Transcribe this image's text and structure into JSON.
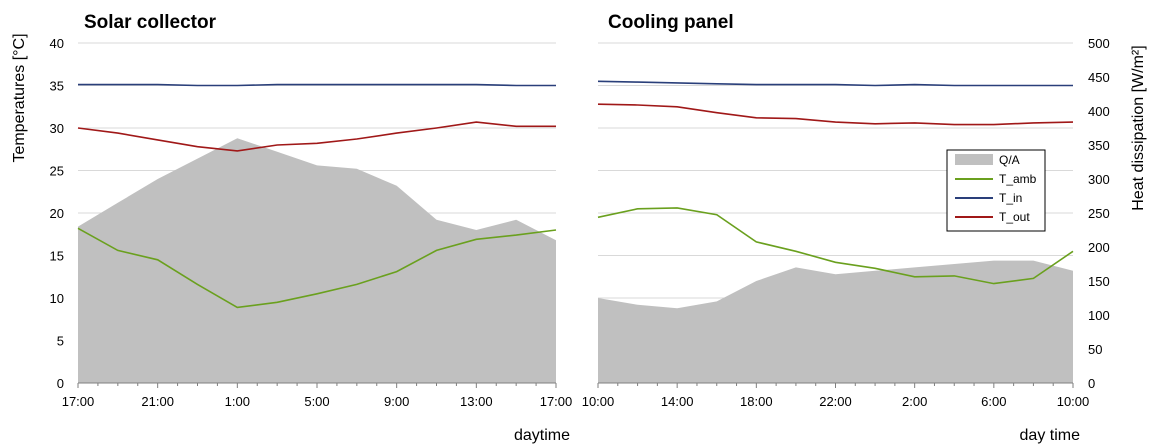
{
  "chart_data": [
    {
      "type": "line",
      "title": "Solar collector",
      "xlabel": "daytime",
      "ylabel": "Temperatures [°C]",
      "ylim": [
        0,
        40
      ],
      "y2lim": [
        0,
        500
      ],
      "yticks": [
        0,
        5,
        10,
        15,
        20,
        25,
        30,
        35,
        40
      ],
      "xticks": [
        "17:00",
        "21:00",
        "1:00",
        "5:00",
        "9:00",
        "13:00",
        "17:00"
      ],
      "grid": true,
      "x": [
        "17:00",
        "19:00",
        "21:00",
        "23:00",
        "1:00",
        "3:00",
        "5:00",
        "7:00",
        "9:00",
        "11:00",
        "13:00",
        "15:00",
        "17:00"
      ],
      "series": [
        {
          "name": "T_amb",
          "axis": "left",
          "kind": "line",
          "color": "#6aa01e",
          "values": [
            18.2,
            15.6,
            14.5,
            11.6,
            8.9,
            9.5,
            10.5,
            11.6,
            13.1,
            15.6,
            16.9,
            17.4,
            18.0
          ]
        },
        {
          "name": "T_in",
          "axis": "left",
          "kind": "line",
          "color": "#2a3f7a",
          "values": [
            35.1,
            35.1,
            35.1,
            35.0,
            35.0,
            35.1,
            35.1,
            35.1,
            35.1,
            35.1,
            35.1,
            35.0,
            35.0
          ]
        },
        {
          "name": "T_out",
          "axis": "left",
          "kind": "line",
          "color": "#a01818",
          "values": [
            30.0,
            29.4,
            28.6,
            27.8,
            27.3,
            28.0,
            28.2,
            28.7,
            29.4,
            30.0,
            30.7,
            30.2,
            30.2
          ]
        },
        {
          "name": "Q/A",
          "axis": "right",
          "kind": "area",
          "color": "#c0c0c0",
          "values": [
            230,
            265,
            300,
            330,
            360,
            340,
            320,
            315,
            290,
            240,
            225,
            240,
            210
          ]
        }
      ]
    },
    {
      "type": "line",
      "title": "Cooling  panel",
      "xlabel": "day time",
      "ylabel": "Heat dissipation [W/m²]",
      "ylim": [
        0,
        40
      ],
      "y2lim": [
        0,
        500
      ],
      "y2ticks": [
        0,
        50,
        100,
        150,
        200,
        250,
        300,
        350,
        400,
        450,
        500
      ],
      "xticks": [
        "10:00",
        "14:00",
        "18:00",
        "22:00",
        "2:00",
        "6:00",
        "10:00"
      ],
      "grid": true,
      "x": [
        "10:00",
        "12:00",
        "14:00",
        "16:00",
        "18:00",
        "20:00",
        "22:00",
        "0:00",
        "2:00",
        "4:00",
        "6:00",
        "8:00",
        "10:00"
      ],
      "series": [
        {
          "name": "T_amb",
          "axis": "left",
          "kind": "line",
          "color": "#6aa01e",
          "values": [
            19.5,
            20.5,
            20.6,
            19.8,
            16.6,
            15.5,
            14.2,
            13.5,
            12.5,
            12.6,
            11.7,
            12.3,
            15.5
          ]
        },
        {
          "name": "T_in",
          "axis": "left",
          "kind": "line",
          "color": "#2a3f7a",
          "values": [
            35.5,
            35.4,
            35.3,
            35.2,
            35.1,
            35.1,
            35.1,
            35.0,
            35.1,
            35.0,
            35.0,
            35.0,
            35.0
          ]
        },
        {
          "name": "T_out",
          "axis": "left",
          "kind": "line",
          "color": "#a01818",
          "values": [
            32.8,
            32.7,
            32.5,
            31.8,
            31.2,
            31.1,
            30.7,
            30.5,
            30.6,
            30.4,
            30.4,
            30.6,
            30.7
          ]
        },
        {
          "name": "Q/A",
          "axis": "right",
          "kind": "area",
          "color": "#c0c0c0",
          "values": [
            125,
            115,
            110,
            120,
            150,
            170,
            160,
            165,
            170,
            175,
            180,
            180,
            165
          ]
        }
      ]
    }
  ],
  "legend": {
    "placement": "right",
    "entries": [
      {
        "label": "Q/A",
        "kind": "area",
        "color": "#c0c0c0"
      },
      {
        "label": "T_amb",
        "kind": "line",
        "color": "#6aa01e"
      },
      {
        "label": "T_in",
        "kind": "line",
        "color": "#2a3f7a"
      },
      {
        "label": "T_out",
        "kind": "line",
        "color": "#a01818"
      }
    ]
  },
  "colors": {
    "grid": "#d9d9d9",
    "axis": "#7f7f7f"
  }
}
